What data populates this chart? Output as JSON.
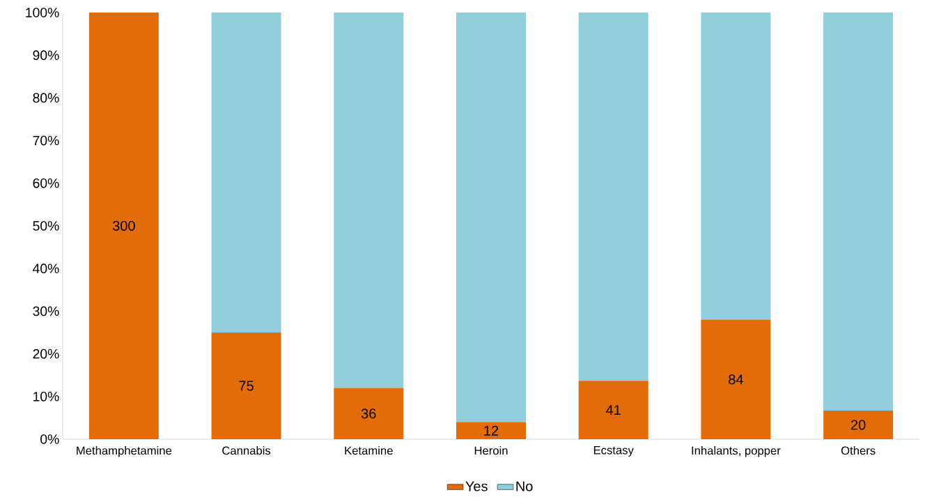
{
  "chart_data": {
    "type": "bar",
    "stacked": true,
    "categories": [
      "Methamphetamine",
      "Cannabis",
      "Ketamine",
      "Heroin",
      "Ecstasy",
      "Inhalants, popper",
      "Others"
    ],
    "series": [
      {
        "name": "Yes",
        "color": "#e36c0a",
        "values": [
          100,
          25,
          12,
          4,
          13.7,
          28,
          6.7
        ]
      },
      {
        "name": "No",
        "color": "#92cddc",
        "values": [
          0,
          75,
          88,
          96,
          86.3,
          72,
          93.3
        ]
      }
    ],
    "ylim": [
      0,
      100
    ],
    "yticks": [
      {
        "value": 0,
        "label": "0%"
      },
      {
        "value": 10,
        "label": "10%"
      },
      {
        "value": 20,
        "label": "20%"
      },
      {
        "value": 30,
        "label": "30%"
      },
      {
        "value": 40,
        "label": "40%"
      },
      {
        "value": 50,
        "label": "50%"
      },
      {
        "value": 60,
        "label": "60%"
      },
      {
        "value": 70,
        "label": "70%"
      },
      {
        "value": 80,
        "label": "80%"
      },
      {
        "value": 90,
        "label": "90%"
      },
      {
        "value": 100,
        "label": "100%"
      }
    ],
    "annotations": [
      "300",
      "75",
      "36",
      "12",
      "41",
      "84",
      "20"
    ],
    "grid": false,
    "legend": "bottom"
  }
}
